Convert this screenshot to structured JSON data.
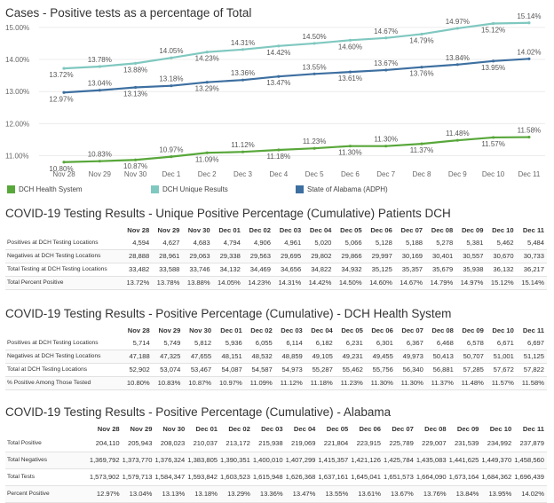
{
  "chart_title": "Cases - Positive tests as a percentage of Total",
  "chart_data": {
    "type": "line",
    "title": "Cases - Positive tests as a percentage of Total",
    "categories": [
      "Nov 28",
      "Nov 29",
      "Nov 30",
      "Dec 1",
      "Dec 2",
      "Dec 3",
      "Dec 4",
      "Dec 5",
      "Dec 6",
      "Dec 7",
      "Dec 8",
      "Dec 9",
      "Dec 10",
      "Dec 11"
    ],
    "y_tick_labels": [
      "11.00%",
      "12.00%",
      "13.00%",
      "14.00%",
      "15.00%"
    ],
    "ylim": [
      10.6,
      15.3
    ],
    "grid": true,
    "legend_position": "bottom",
    "series": [
      {
        "name": "DCH Unique Results",
        "color": "#7fc8c0",
        "values": [
          13.72,
          13.78,
          13.88,
          14.05,
          14.23,
          14.31,
          14.42,
          14.5,
          14.6,
          14.67,
          14.79,
          14.97,
          15.12,
          15.14
        ],
        "labels": [
          "13.72%",
          "13.78%",
          "13.88%",
          "14.05%",
          "14.23%",
          "14.31%",
          "14.42%",
          "14.50%",
          "14.60%",
          "14.67%",
          "14.79%",
          "14.97%",
          "15.12%",
          "15.14%"
        ]
      },
      {
        "name": "State of Alabama (ADPH)",
        "color": "#3d6fa0",
        "values": [
          12.97,
          13.04,
          13.13,
          13.18,
          13.29,
          13.36,
          13.47,
          13.55,
          13.61,
          13.67,
          13.76,
          13.84,
          13.95,
          14.02
        ],
        "labels": [
          "12.97%",
          "13.04%",
          "13.13%",
          "13.18%",
          "13.29%",
          "13.36%",
          "13.47%",
          "13.55%",
          "13.61%",
          "13.67%",
          "13.76%",
          "13.84%",
          "13.95%",
          "14.02%"
        ]
      },
      {
        "name": "DCH Health System",
        "color": "#58a73a",
        "values": [
          10.8,
          10.83,
          10.87,
          10.97,
          11.09,
          11.12,
          11.18,
          11.23,
          11.3,
          11.3,
          11.37,
          11.48,
          11.57,
          11.58
        ],
        "labels": [
          "10.80%",
          "10.83%",
          "10.87%",
          "10.97%",
          "11.09%",
          "11.12%",
          "11.18%",
          "11.23%",
          "11.30%",
          "11.30%",
          "11.37%",
          "11.48%",
          "11.57%",
          "11.58%"
        ]
      }
    ]
  },
  "legend": [
    {
      "label": "DCH Health System",
      "color": "#58a73a"
    },
    {
      "label": "DCH Unique Results",
      "color": "#7fc8c0"
    },
    {
      "label": "State of Alabama (ADPH)",
      "color": "#3d6fa0"
    }
  ],
  "table_columns": [
    "Nov 28",
    "Nov 29",
    "Nov 30",
    "Dec 01",
    "Dec 02",
    "Dec 03",
    "Dec 04",
    "Dec 05",
    "Dec 06",
    "Dec 07",
    "Dec 08",
    "Dec 09",
    "Dec 10",
    "Dec 11"
  ],
  "tables": [
    {
      "title": "COVID-19 Testing Results - Unique Positive Percentage (Cumulative) Patients DCH",
      "rows": [
        {
          "label": "Positives at DCH Testing Locations",
          "values": [
            "4,594",
            "4,627",
            "4,683",
            "4,794",
            "4,906",
            "4,961",
            "5,020",
            "5,066",
            "5,128",
            "5,188",
            "5,278",
            "5,381",
            "5,462",
            "5,484"
          ]
        },
        {
          "label": "Negatives at DCH Testing Locations",
          "values": [
            "28,888",
            "28,961",
            "29,063",
            "29,338",
            "29,563",
            "29,695",
            "29,802",
            "29,866",
            "29,997",
            "30,169",
            "30,401",
            "30,557",
            "30,670",
            "30,733"
          ]
        },
        {
          "label": "Total Testing at DCH Testing Locations",
          "values": [
            "33,482",
            "33,588",
            "33,746",
            "34,132",
            "34,469",
            "34,656",
            "34,822",
            "34,932",
            "35,125",
            "35,357",
            "35,679",
            "35,938",
            "36,132",
            "36,217"
          ]
        },
        {
          "label": "Total Percent Positive",
          "values": [
            "13.72%",
            "13.78%",
            "13.88%",
            "14.05%",
            "14.23%",
            "14.31%",
            "14.42%",
            "14.50%",
            "14.60%",
            "14.67%",
            "14.79%",
            "14.97%",
            "15.12%",
            "15.14%"
          ]
        }
      ]
    },
    {
      "title": "COVID-19 Testing Results - Positive Percentage (Cumulative) - DCH Health System",
      "rows": [
        {
          "label": "Positives at DCH Testing Locations",
          "values": [
            "5,714",
            "5,749",
            "5,812",
            "5,936",
            "6,055",
            "6,114",
            "6,182",
            "6,231",
            "6,301",
            "6,367",
            "6,468",
            "6,578",
            "6,671",
            "6,697"
          ]
        },
        {
          "label": "Negatives at DCH Testing Locations",
          "values": [
            "47,188",
            "47,325",
            "47,655",
            "48,151",
            "48,532",
            "48,859",
            "49,105",
            "49,231",
            "49,455",
            "49,973",
            "50,413",
            "50,707",
            "51,001",
            "51,125"
          ]
        },
        {
          "label": "Total at DCH Testing Locations",
          "values": [
            "52,902",
            "53,074",
            "53,467",
            "54,087",
            "54,587",
            "54,973",
            "55,287",
            "55,462",
            "55,756",
            "56,340",
            "56,881",
            "57,285",
            "57,672",
            "57,822"
          ]
        },
        {
          "label": "% Positive Among Those Tested",
          "values": [
            "10.80%",
            "10.83%",
            "10.87%",
            "10.97%",
            "11.09%",
            "11.12%",
            "11.18%",
            "11.23%",
            "11.30%",
            "11.30%",
            "11.37%",
            "11.48%",
            "11.57%",
            "11.58%"
          ]
        }
      ]
    },
    {
      "title": "COVID-19 Testing Results - Positive Percentage (Cumulative) - Alabama",
      "rows": [
        {
          "label": "Total Positive",
          "values": [
            "204,110",
            "205,943",
            "208,023",
            "210,037",
            "213,172",
            "215,938",
            "219,069",
            "221,804",
            "223,915",
            "225,789",
            "229,007",
            "231,539",
            "234,992",
            "237,879"
          ]
        },
        {
          "label": "Total Negatives",
          "values": [
            "1,369,792",
            "1,373,770",
            "1,376,324",
            "1,383,805",
            "1,390,351",
            "1,400,010",
            "1,407,299",
            "1,415,357",
            "1,421,126",
            "1,425,784",
            "1,435,083",
            "1,441,625",
            "1,449,370",
            "1,458,560"
          ]
        },
        {
          "label": "Total Tests",
          "values": [
            "1,573,902",
            "1,579,713",
            "1,584,347",
            "1,593,842",
            "1,603,523",
            "1,615,948",
            "1,626,368",
            "1,637,161",
            "1,645,041",
            "1,651,573",
            "1,664,090",
            "1,673,164",
            "1,684,362",
            "1,696,439"
          ]
        },
        {
          "label": "Percent Positive",
          "values": [
            "12.97%",
            "13.04%",
            "13.13%",
            "13.18%",
            "13.29%",
            "13.36%",
            "13.47%",
            "13.55%",
            "13.61%",
            "13.67%",
            "13.76%",
            "13.84%",
            "13.95%",
            "14.02%"
          ]
        }
      ]
    }
  ]
}
